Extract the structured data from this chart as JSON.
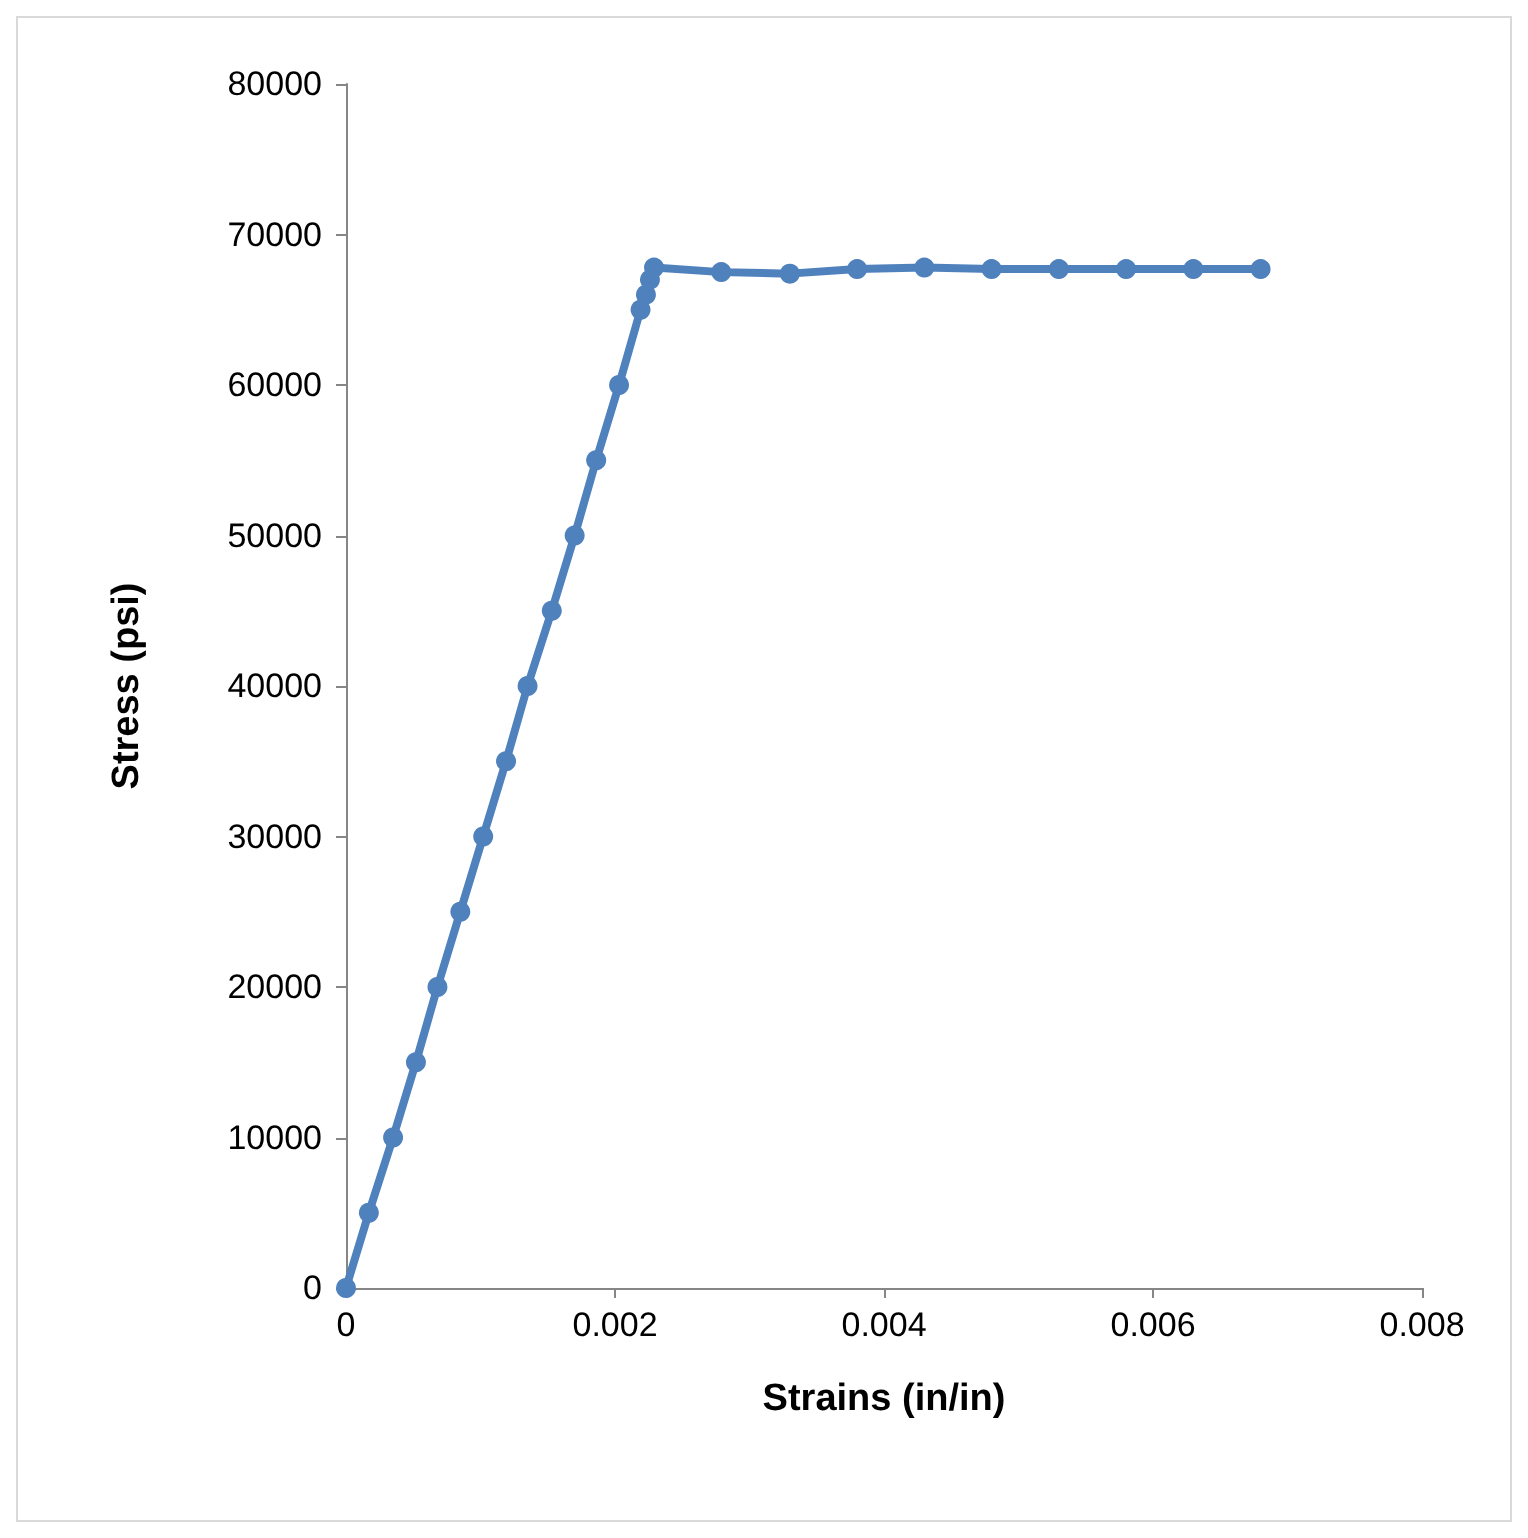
{
  "chart_data": {
    "type": "line",
    "xlabel": "Strains (in/in)",
    "ylabel": "Stress (psi)",
    "x": [
      0,
      0.00017,
      0.00035,
      0.00052,
      0.00068,
      0.00085,
      0.00102,
      0.00119,
      0.00135,
      0.00153,
      0.0017,
      0.00186,
      0.00203,
      0.00219,
      0.00223,
      0.00226,
      0.00229,
      0.00279,
      0.0033,
      0.0038,
      0.0043,
      0.0048,
      0.0053,
      0.0058,
      0.0063,
      0.0068
    ],
    "series": [
      {
        "color": "#4f81bd",
        "values": [
          0,
          5000,
          10000,
          15000,
          20000,
          25000,
          30000,
          35000,
          40000,
          45000,
          50000,
          55000,
          60000,
          65000,
          66000,
          67000,
          67800,
          67500,
          67400,
          67700,
          67800,
          67700,
          67700,
          67700,
          67700,
          67700
        ]
      }
    ],
    "xlim": [
      0,
      0.008
    ],
    "xticks": [
      0,
      0.002,
      0.004,
      0.006,
      0.008
    ],
    "ylim": [
      0,
      80000
    ],
    "yticks": [
      0,
      10000,
      20000,
      30000,
      40000,
      50000,
      60000,
      70000,
      80000
    ],
    "grid": false,
    "marker": "circle",
    "line_style": "solid"
  }
}
